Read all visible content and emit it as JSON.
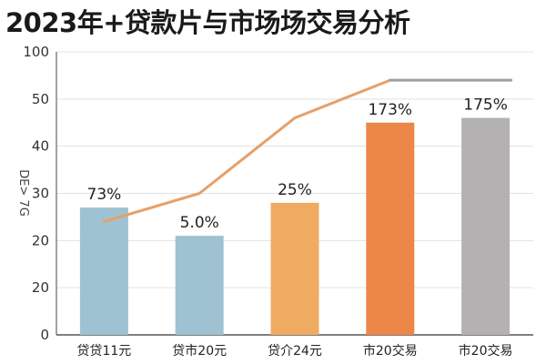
{
  "chart_data": {
    "type": "bar",
    "title": "2023年+贷款片与市场场交易分析",
    "ylabel": "DE> 7G",
    "xlabel": "",
    "ylim": [
      0,
      100
    ],
    "y_tick_labels": [
      "0",
      "20",
      "20",
      "30",
      "40",
      "50",
      "100"
    ],
    "categories": [
      "贷贷11元",
      "贷市20元",
      "贷介24元",
      "市20交易",
      "市20交易"
    ],
    "values": [
      27,
      21,
      28,
      45,
      46
    ],
    "data_labels": [
      "73%",
      "5.0%",
      "25%",
      "173%",
      "175%"
    ],
    "bar_colors": [
      "#9fc2d2",
      "#9fc2d2",
      "#f0ab62",
      "#ec8748",
      "#b4b1b3"
    ],
    "line": {
      "values": [
        24,
        30,
        46,
        54,
        54
      ],
      "colors": [
        "#e6a06a",
        "#a0a0a0"
      ]
    },
    "grid": true,
    "legend": "none"
  }
}
